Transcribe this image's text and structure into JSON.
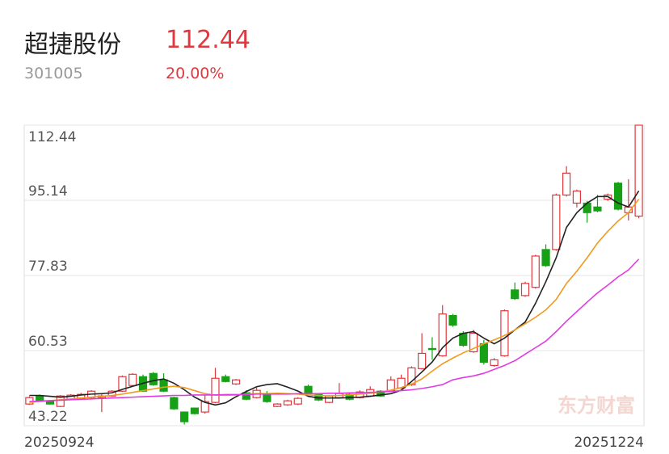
{
  "header": {
    "name": "超捷股份",
    "price": "112.44",
    "code": "301005",
    "change": "20.00%"
  },
  "chart_data": {
    "type": "candlestick",
    "watermark": "东方财富",
    "categories": [
      "20250924",
      null,
      null,
      null,
      null,
      null,
      null,
      null,
      null,
      null,
      null,
      null,
      null,
      null,
      null,
      null,
      null,
      null,
      null,
      null,
      null,
      null,
      null,
      null,
      null,
      null,
      null,
      null,
      null,
      null,
      null,
      null,
      null,
      null,
      null,
      null,
      null,
      null,
      null,
      null,
      null,
      null,
      null,
      null,
      null,
      null,
      null,
      null,
      null,
      null,
      null,
      null,
      null,
      null,
      null,
      null,
      null,
      null,
      null,
      "20251224"
    ],
    "open": [
      48.22,
      50.07,
      48.78,
      47.66,
      49.33,
      49.52,
      49.7,
      49.7,
      50.07,
      51.18,
      52.48,
      54.52,
      55.26,
      53.78,
      49.7,
      46.37,
      47.29,
      46.37,
      48.59,
      54.52,
      52.85,
      50.81,
      49.7,
      50.44,
      47.66,
      48.04,
      48.22,
      52.29,
      50.44,
      48.59,
      49.7,
      50.44,
      49.7,
      50.07,
      51.18,
      51.37,
      51.92,
      52.66,
      56.37,
      61.0,
      59.33,
      68.6,
      64.52,
      60.26,
      62.1,
      57.1,
      59.33,
      74.5,
      73.2,
      75.1,
      83.8,
      83.8,
      96.37,
      94.5,
      94.5,
      93.6,
      95.4,
      99.1,
      92.3,
      91.5
    ],
    "high": [
      50.0,
      50.4,
      48.9,
      50.3,
      50.5,
      50.8,
      51.4,
      50.44,
      51.4,
      54.8,
      55.3,
      55.0,
      55.6,
      55.3,
      49.9,
      46.5,
      47.4,
      50.2,
      56.55,
      55.0,
      54.0,
      51.4,
      52.0,
      51.2,
      48.4,
      49.2,
      49.8,
      52.7,
      50.7,
      50.3,
      53.04,
      50.7,
      51.4,
      52.3,
      51.4,
      54.6,
      55.0,
      56.9,
      64.52,
      63.6,
      71.0,
      69.0,
      65.0,
      65.3,
      63.0,
      58.8,
      70.0,
      76.2,
      76.4,
      82.6,
      85.0,
      96.7,
      103.0,
      97.6,
      95.0,
      96.4,
      96.7,
      99.4,
      100.0,
      112.44
    ],
    "low": [
      48.0,
      48.8,
      48.1,
      47.5,
      49.2,
      49.4,
      49.5,
      46.37,
      49.9,
      51.0,
      52.3,
      51.0,
      52.4,
      51.0,
      46.9,
      43.5,
      45.8,
      46.0,
      48.4,
      53.2,
      52.6,
      49.1,
      49.5,
      48.5,
      47.5,
      47.8,
      48.0,
      50.5,
      48.9,
      48.4,
      49.5,
      49.1,
      49.5,
      49.9,
      49.9,
      51.2,
      51.7,
      52.4,
      56.2,
      58.4,
      59.1,
      66.0,
      61.4,
      60.0,
      57.3,
      56.8,
      59.1,
      72.2,
      72.9,
      74.8,
      79.8,
      83.5,
      96.0,
      93.5,
      90.0,
      92.4,
      95.0,
      92.8,
      90.5,
      91.0
    ],
    "close": [
      49.7,
      48.96,
      48.22,
      50.07,
      50.26,
      50.44,
      51.18,
      50.07,
      51.18,
      54.52,
      55.07,
      51.18,
      52.66,
      51.18,
      47.11,
      44.15,
      46.0,
      48.78,
      54.15,
      53.41,
      53.78,
      49.33,
      51.37,
      48.78,
      48.22,
      48.96,
      49.52,
      50.81,
      49.15,
      50.07,
      50.63,
      49.33,
      51.0,
      51.55,
      50.07,
      53.78,
      54.15,
      56.55,
      59.89,
      60.8,
      68.96,
      66.4,
      61.74,
      64.52,
      57.85,
      58.4,
      69.7,
      72.5,
      76.0,
      82.3,
      80.1,
      96.37,
      101.4,
      97.3,
      92.3,
      92.7,
      96.37,
      93.1,
      93.6,
      112.44
    ],
    "up_color": "#e0383e",
    "down_color": "#16a016",
    "series": [
      {
        "color": "#222222",
        "values": [
          50.2,
          50.2,
          50.0,
          49.8,
          50.0,
          50.3,
          50.5,
          50.6,
          50.8,
          51.6,
          52.3,
          53.0,
          53.6,
          54.0,
          53.0,
          51.5,
          49.8,
          48.6,
          48.0,
          48.5,
          49.9,
          51.1,
          52.2,
          52.7,
          52.9,
          52.1,
          51.2,
          50.0,
          49.6,
          49.6,
          49.6,
          49.7,
          49.8,
          50.0,
          50.3,
          50.6,
          51.4,
          53.4,
          55.6,
          57.9,
          61.2,
          63.4,
          64.5,
          64.9,
          63.4,
          62.1,
          63.4,
          65.3,
          67.1,
          71.4,
          76.4,
          81.9,
          88.9,
          92.3,
          94.5,
          96.0,
          96.0,
          94.5,
          93.6,
          97.3
        ]
      },
      {
        "color": "#f09a1e",
        "values": [
          48.6,
          48.8,
          49.0,
          49.2,
          49.4,
          49.6,
          49.8,
          50.0,
          50.2,
          50.5,
          50.9,
          51.3,
          51.7,
          52.1,
          52.3,
          52.0,
          51.3,
          50.6,
          50.3,
          50.2,
          50.3,
          50.5,
          50.6,
          50.6,
          50.7,
          50.6,
          50.5,
          50.3,
          50.2,
          50.1,
          50.2,
          50.3,
          50.5,
          50.7,
          51.0,
          51.4,
          52.0,
          52.8,
          54.0,
          55.8,
          57.5,
          58.8,
          60.0,
          61.0,
          62.1,
          63.0,
          64.0,
          65.3,
          66.7,
          68.2,
          69.9,
          72.3,
          76.0,
          78.8,
          81.9,
          85.3,
          88.0,
          90.4,
          92.3,
          95.4
        ]
      },
      {
        "color": "#e03ce0",
        "values": [
          48.8,
          48.9,
          49.0,
          49.1,
          49.2,
          49.3,
          49.4,
          49.5,
          49.6,
          49.7,
          49.8,
          49.9,
          50.0,
          50.1,
          50.2,
          50.2,
          50.3,
          50.3,
          50.3,
          50.4,
          50.4,
          50.4,
          50.5,
          50.5,
          50.5,
          50.5,
          50.6,
          50.6,
          50.6,
          50.7,
          50.7,
          50.8,
          50.8,
          50.9,
          51.0,
          51.1,
          51.3,
          51.5,
          51.8,
          52.2,
          52.7,
          53.8,
          54.3,
          54.7,
          55.3,
          56.2,
          57.1,
          58.2,
          59.7,
          61.2,
          62.7,
          64.9,
          67.3,
          69.5,
          71.7,
          73.8,
          75.6,
          77.5,
          79.1,
          81.6
        ]
      }
    ],
    "ylim": [
      43.22,
      112.44
    ],
    "yticks": [
      43.22,
      60.53,
      77.83,
      95.14,
      112.44
    ],
    "grid": true
  }
}
